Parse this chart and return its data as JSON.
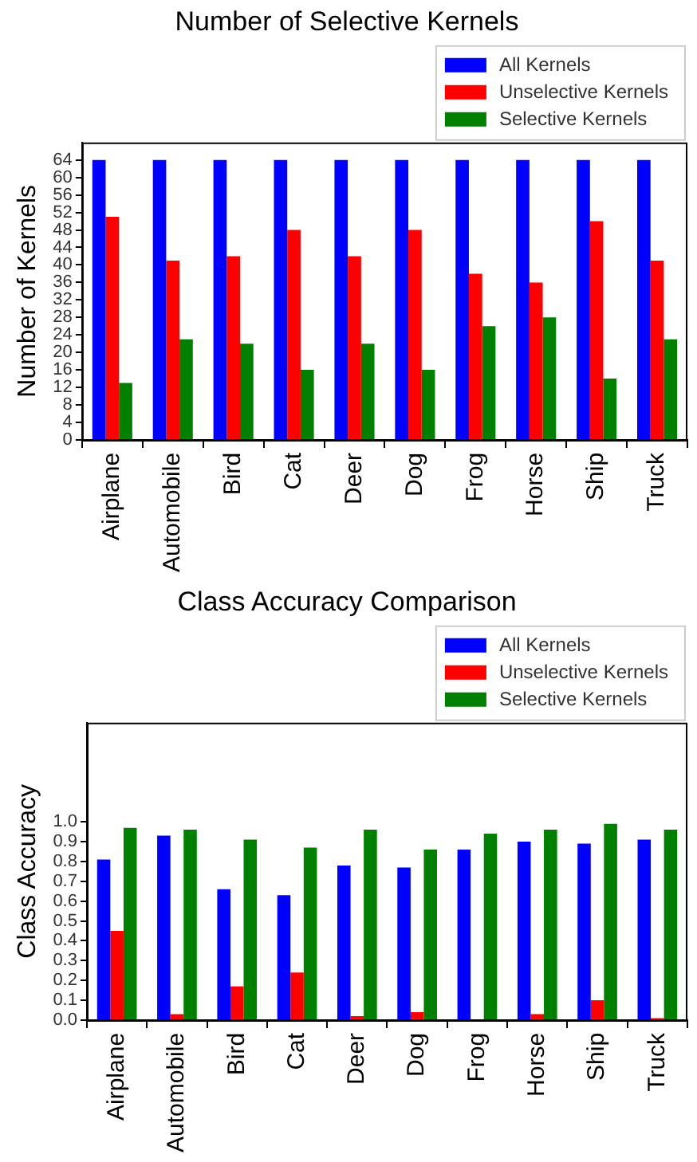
{
  "chart_data": [
    {
      "type": "bar",
      "title": "Number of Selective Kernels",
      "ylabel": "Number of Kernels",
      "categories": [
        "Airplane",
        "Automobile",
        "Bird",
        "Cat",
        "Deer",
        "Dog",
        "Frog",
        "Horse",
        "Ship",
        "Truck"
      ],
      "series": [
        {
          "name": "All Kernels",
          "color": "#0000ff",
          "values": [
            64,
            64,
            64,
            64,
            64,
            64,
            64,
            64,
            64,
            64
          ]
        },
        {
          "name": "Unselective Kernels",
          "color": "#ff0000",
          "values": [
            51,
            41,
            42,
            48,
            42,
            48,
            38,
            36,
            50,
            41
          ]
        },
        {
          "name": "Selective Kernels",
          "color": "#008000",
          "values": [
            13,
            23,
            22,
            16,
            22,
            16,
            26,
            28,
            14,
            23
          ]
        }
      ],
      "ylim": [
        0,
        68
      ],
      "yticks": [
        0,
        4,
        8,
        12,
        16,
        20,
        24,
        28,
        32,
        36,
        40,
        44,
        48,
        52,
        56,
        60,
        64
      ],
      "grid": false,
      "legend": "top right"
    },
    {
      "type": "bar",
      "title": "Class Accuracy Comparison",
      "ylabel": "Class Accuracy",
      "categories": [
        "Airplane",
        "Automobile",
        "Bird",
        "Cat",
        "Deer",
        "Dog",
        "Frog",
        "Horse",
        "Ship",
        "Truck"
      ],
      "series": [
        {
          "name": "All Kernels",
          "color": "#0000ff",
          "values": [
            0.81,
            0.93,
            0.66,
            0.63,
            0.78,
            0.77,
            0.86,
            0.9,
            0.89,
            0.91
          ]
        },
        {
          "name": "Unselective Kernels",
          "color": "#ff0000",
          "values": [
            0.45,
            0.03,
            0.17,
            0.24,
            0.02,
            0.04,
            0,
            0.03,
            0.1,
            0.01
          ]
        },
        {
          "name": "Selective Kernels",
          "color": "#008000",
          "values": [
            0.97,
            0.96,
            0.91,
            0.87,
            0.96,
            0.86,
            0.94,
            0.96,
            0.99,
            0.96
          ]
        }
      ],
      "ylim": [
        0,
        1.5
      ],
      "yticks": [
        {
          "value": 0,
          "label": "0.0"
        },
        0.1,
        0.2,
        0.3,
        0.4,
        0.5,
        0.6,
        0.7,
        0.8,
        0.9,
        {
          "value": 1,
          "label": "1.0"
        }
      ],
      "grid": false,
      "legend": "top right"
    }
  ]
}
